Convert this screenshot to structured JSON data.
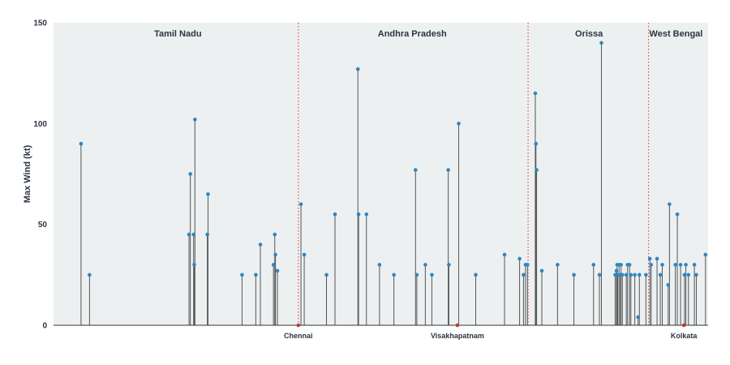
{
  "chart_data": {
    "type": "lollipop",
    "ylabel": "Max Wind (kt)",
    "xlabel": "",
    "ylim": [
      0,
      150
    ],
    "yticks": [
      0,
      50,
      100,
      150
    ],
    "x_extent": [
      0,
      1000
    ],
    "regions": [
      {
        "label": "Tamil Nadu",
        "center": 190
      },
      {
        "label": "Andhra Pradesh",
        "center": 548
      },
      {
        "label": "Orissa",
        "center": 818
      },
      {
        "label": "West Bengal",
        "center": 951
      }
    ],
    "boundaries": [
      374,
      725,
      909
    ],
    "cities": [
      {
        "label": "Chennai",
        "x": 374
      },
      {
        "label": "Visakhapatnam",
        "x": 617
      },
      {
        "label": "Kolkata",
        "x": 963
      }
    ],
    "points": [
      {
        "x": 42,
        "y": 90
      },
      {
        "x": 55,
        "y": 25
      },
      {
        "x": 207,
        "y": 45
      },
      {
        "x": 209,
        "y": 75
      },
      {
        "x": 214,
        "y": 45
      },
      {
        "x": 215,
        "y": 30
      },
      {
        "x": 216,
        "y": 102
      },
      {
        "x": 235,
        "y": 45
      },
      {
        "x": 236,
        "y": 65
      },
      {
        "x": 288,
        "y": 25
      },
      {
        "x": 309,
        "y": 25
      },
      {
        "x": 316,
        "y": 40
      },
      {
        "x": 336,
        "y": 30
      },
      {
        "x": 338,
        "y": 45
      },
      {
        "x": 339,
        "y": 35
      },
      {
        "x": 342,
        "y": 27
      },
      {
        "x": 378,
        "y": 60
      },
      {
        "x": 383,
        "y": 35
      },
      {
        "x": 417,
        "y": 25
      },
      {
        "x": 430,
        "y": 55
      },
      {
        "x": 465,
        "y": 127
      },
      {
        "x": 466,
        "y": 55
      },
      {
        "x": 478,
        "y": 55
      },
      {
        "x": 498,
        "y": 30
      },
      {
        "x": 520,
        "y": 25
      },
      {
        "x": 553,
        "y": 77
      },
      {
        "x": 555,
        "y": 25
      },
      {
        "x": 568,
        "y": 30
      },
      {
        "x": 578,
        "y": 25
      },
      {
        "x": 603,
        "y": 77
      },
      {
        "x": 604,
        "y": 30
      },
      {
        "x": 619,
        "y": 100
      },
      {
        "x": 645,
        "y": 25
      },
      {
        "x": 689,
        "y": 35
      },
      {
        "x": 712,
        "y": 33
      },
      {
        "x": 718,
        "y": 25
      },
      {
        "x": 721,
        "y": 30
      },
      {
        "x": 724,
        "y": 30
      },
      {
        "x": 736,
        "y": 115
      },
      {
        "x": 737,
        "y": 90
      },
      {
        "x": 738,
        "y": 77
      },
      {
        "x": 746,
        "y": 27
      },
      {
        "x": 770,
        "y": 30
      },
      {
        "x": 795,
        "y": 25
      },
      {
        "x": 825,
        "y": 30
      },
      {
        "x": 834,
        "y": 25
      },
      {
        "x": 837,
        "y": 140
      },
      {
        "x": 858,
        "y": 25
      },
      {
        "x": 860,
        "y": 27
      },
      {
        "x": 861,
        "y": 30
      },
      {
        "x": 862,
        "y": 25
      },
      {
        "x": 864,
        "y": 30
      },
      {
        "x": 866,
        "y": 25
      },
      {
        "x": 867,
        "y": 30
      },
      {
        "x": 869,
        "y": 25
      },
      {
        "x": 875,
        "y": 25
      },
      {
        "x": 877,
        "y": 30
      },
      {
        "x": 880,
        "y": 30
      },
      {
        "x": 882,
        "y": 25
      },
      {
        "x": 888,
        "y": 25
      },
      {
        "x": 893,
        "y": 4
      },
      {
        "x": 895,
        "y": 25
      },
      {
        "x": 905,
        "y": 25
      },
      {
        "x": 911,
        "y": 33
      },
      {
        "x": 913,
        "y": 30
      },
      {
        "x": 922,
        "y": 33
      },
      {
        "x": 927,
        "y": 25
      },
      {
        "x": 930,
        "y": 30
      },
      {
        "x": 939,
        "y": 20
      },
      {
        "x": 941,
        "y": 60
      },
      {
        "x": 950,
        "y": 30
      },
      {
        "x": 953,
        "y": 55
      },
      {
        "x": 958,
        "y": 30
      },
      {
        "x": 964,
        "y": 25
      },
      {
        "x": 966,
        "y": 30
      },
      {
        "x": 970,
        "y": 25
      },
      {
        "x": 979,
        "y": 30
      },
      {
        "x": 982,
        "y": 25
      },
      {
        "x": 996,
        "y": 35
      }
    ],
    "colors": {
      "plot_background": "#ecf0f1",
      "stem": "#555555",
      "marker": "#2e86c1",
      "boundary": "#e74c3c",
      "city_marker": "#c0392b",
      "text": "#2b3440"
    }
  }
}
